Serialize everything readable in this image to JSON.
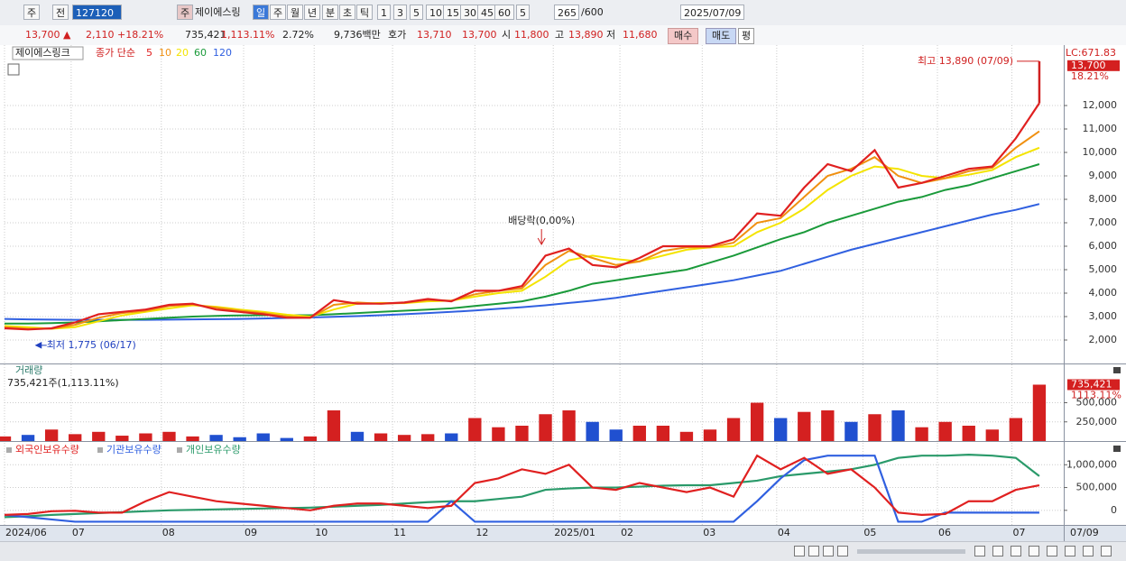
{
  "toolbar": [
    "주",
    "전",
    "127120",
    "주",
    "제이에스링",
    "일",
    "주",
    "월",
    "년",
    "분",
    "초",
    "틱",
    "1",
    "3",
    "5",
    "10",
    "15",
    "30",
    "45",
    "60",
    "5",
    "265",
    "/600",
    "2025/07/09"
  ],
  "info": [
    "13,700 ▲",
    "2,110",
    "+18.21%",
    "735,421",
    "1,113.11%",
    "2.72%",
    "9,736백만",
    "호가",
    "13,710",
    "13,700",
    "시",
    "11,800",
    "고",
    "13,890",
    "저",
    "11,680",
    "매수",
    "매도",
    "평"
  ],
  "chart_data": [
    {
      "type": "line",
      "title": "제이에스링크",
      "legend_prefix": "종가 단순",
      "x": [
        0,
        6,
        12,
        18,
        24,
        30,
        36,
        42,
        48,
        54,
        60,
        66,
        72,
        78,
        84,
        90,
        96,
        102,
        108,
        114,
        120,
        126,
        132,
        138,
        144,
        150,
        156,
        162,
        168,
        174,
        180,
        186,
        192,
        198,
        204,
        210,
        216,
        222,
        228,
        234,
        240,
        246,
        252,
        258,
        264
      ],
      "xlim": [
        0,
        270
      ],
      "xticks": [
        {
          "value": 0,
          "label": "2024/06"
        },
        {
          "value": 17,
          "label": "07"
        },
        {
          "value": 40,
          "label": "08"
        },
        {
          "value": 61,
          "label": "09"
        },
        {
          "value": 79,
          "label": "10"
        },
        {
          "value": 99,
          "label": "11"
        },
        {
          "value": 120,
          "label": "12"
        },
        {
          "value": 140,
          "label": "2025/01"
        },
        {
          "value": 157,
          "label": "02"
        },
        {
          "value": 178,
          "label": "03"
        },
        {
          "value": 197,
          "label": "04"
        },
        {
          "value": 219,
          "label": "05"
        },
        {
          "value": 238,
          "label": "06"
        },
        {
          "value": 257,
          "label": "07"
        }
      ],
      "x_end_label": "07/09",
      "ylim": [
        1000,
        14500
      ],
      "yticks": [
        {
          "value": 2000,
          "label": "2,000"
        },
        {
          "value": 3000,
          "label": "3,000"
        },
        {
          "value": 4000,
          "label": "4,000"
        },
        {
          "value": 5000,
          "label": "5,000"
        },
        {
          "value": 6000,
          "label": "6,000"
        },
        {
          "value": 7000,
          "label": "7,000"
        },
        {
          "value": 8000,
          "label": "8,000"
        },
        {
          "value": 9000,
          "label": "9,000"
        },
        {
          "value": 10000,
          "label": "10,000"
        },
        {
          "value": 11000,
          "label": "11,000"
        },
        {
          "value": 12000,
          "label": "12,000"
        }
      ],
      "grid": true,
      "series": [
        {
          "name": "5",
          "color": "#e02020",
          "values": [
            2500,
            2450,
            2500,
            2750,
            3100,
            3200,
            3300,
            3500,
            3550,
            3300,
            3200,
            3100,
            2950,
            2950,
            3700,
            3550,
            3550,
            3600,
            3750,
            3650,
            4100,
            4100,
            4300,
            5600,
            5900,
            5200,
            5100,
            5500,
            6000,
            6000,
            6000,
            6300,
            7400,
            7300,
            8500,
            9500,
            9200,
            10100,
            8500,
            8700,
            9000,
            9300,
            9400,
            10600,
            12100
          ]
        },
        {
          "name": "10",
          "color": "#f09010",
          "values": [
            2550,
            2480,
            2480,
            2650,
            2950,
            3150,
            3250,
            3450,
            3520,
            3380,
            3250,
            3150,
            3000,
            2950,
            3500,
            3600,
            3550,
            3580,
            3700,
            3680,
            3950,
            4100,
            4200,
            5200,
            5800,
            5500,
            5200,
            5350,
            5800,
            5950,
            5950,
            6150,
            7000,
            7200,
            8100,
            9000,
            9300,
            9800,
            9000,
            8700,
            8900,
            9200,
            9350,
            10200,
            10900
          ]
        },
        {
          "name": "20",
          "color": "#f4e400",
          "values": [
            2600,
            2550,
            2480,
            2550,
            2800,
            3050,
            3200,
            3350,
            3480,
            3420,
            3300,
            3200,
            3080,
            3000,
            3300,
            3550,
            3580,
            3570,
            3650,
            3680,
            3850,
            4000,
            4100,
            4700,
            5400,
            5600,
            5450,
            5350,
            5600,
            5850,
            5950,
            6000,
            6600,
            7000,
            7600,
            8400,
            9000,
            9400,
            9300,
            9000,
            8900,
            9050,
            9250,
            9800,
            10200
          ]
        },
        {
          "name": "60",
          "color": "#1a9a3a",
          "values": [
            2700,
            2700,
            2720,
            2750,
            2800,
            2850,
            2900,
            2950,
            3000,
            3030,
            3050,
            3060,
            3060,
            3060,
            3100,
            3150,
            3200,
            3250,
            3300,
            3350,
            3450,
            3550,
            3650,
            3850,
            4100,
            4400,
            4550,
            4700,
            4850,
            5000,
            5300,
            5600,
            5950,
            6300,
            6600,
            7000,
            7300,
            7600,
            7900,
            8100,
            8400,
            8600,
            8900,
            9200,
            9500
          ]
        },
        {
          "name": "120",
          "color": "#3060e0",
          "values": [
            2900,
            2880,
            2870,
            2860,
            2860,
            2860,
            2860,
            2870,
            2880,
            2890,
            2900,
            2920,
            2940,
            2960,
            2990,
            3020,
            3060,
            3100,
            3150,
            3200,
            3260,
            3330,
            3400,
            3480,
            3580,
            3680,
            3800,
            3950,
            4100,
            4250,
            4400,
            4550,
            4750,
            4950,
            5250,
            5550,
            5850,
            6100,
            6350,
            6600,
            6850,
            7100,
            7350,
            7550,
            7800
          ]
        }
      ],
      "high": {
        "label": "최고 13,890 (07/09)",
        "value": 13890,
        "x": 264
      },
      "low": {
        "label": "최저 1,775 (06/17)",
        "value": 1775,
        "x": 8
      },
      "event": {
        "label": "배당락(0,00%)",
        "x": 137
      },
      "last": {
        "value": 13700,
        "label": "13,700"
      },
      "change_label": "18.21%",
      "lc_label": "LC:671.83"
    },
    {
      "type": "bar",
      "title": "거래량",
      "subtitle": "735,421주(1,113.11%)",
      "color": "#d42020",
      "down_color": "#2050d0",
      "values": [
        60000,
        80000,
        150000,
        90000,
        120000,
        70000,
        100000,
        120000,
        60000,
        80000,
        50000,
        100000,
        40000,
        60000,
        400000,
        120000,
        100000,
        80000,
        90000,
        100000,
        300000,
        180000,
        200000,
        350000,
        400000,
        250000,
        150000,
        200000,
        200000,
        120000,
        150000,
        300000,
        500000,
        300000,
        380000,
        400000,
        250000,
        350000,
        400000,
        180000,
        250000,
        200000,
        150000,
        300000,
        735421
      ],
      "ylim": [
        0,
        1000000
      ],
      "yticks": [
        {
          "value": 250000,
          "label": "250,000"
        },
        {
          "value": 500000,
          "label": "500,000"
        }
      ],
      "last": {
        "value": 735421,
        "label": "735,421"
      },
      "ratio_label": "1113.11%"
    },
    {
      "type": "line",
      "ylim": [
        -320000,
        1500000
      ],
      "yticks": [
        0,
        {
          "value": 500000,
          "label": "500,000"
        },
        {
          "value": 1000000,
          "label": "1,000,000"
        }
      ],
      "series": [
        {
          "name": "외국인보유수량",
          "color": "#e02020",
          "values": [
            -100000,
            -80000,
            -20000,
            -10000,
            -50000,
            -50000,
            200000,
            400000,
            300000,
            200000,
            150000,
            100000,
            50000,
            0,
            100000,
            150000,
            150000,
            100000,
            50000,
            100000,
            600000,
            700000,
            900000,
            800000,
            1000000,
            500000,
            450000,
            600000,
            500000,
            400000,
            500000,
            300000,
            1200000,
            900000,
            1150000,
            800000,
            900000,
            500000,
            -50000,
            -100000,
            -80000,
            200000,
            200000,
            450000,
            550000
          ]
        },
        {
          "name": "기관보유수량",
          "color": "#3060e0",
          "values": [
            -100000,
            -150000,
            -200000,
            -250000,
            -250000,
            -250000,
            -250000,
            -250000,
            -250000,
            -250000,
            -250000,
            -250000,
            -250000,
            -250000,
            -250000,
            -250000,
            -250000,
            -250000,
            -250000,
            200000,
            -250000,
            -250000,
            -250000,
            -250000,
            -250000,
            -250000,
            -250000,
            -250000,
            -250000,
            -250000,
            -250000,
            -250000,
            200000,
            700000,
            1100000,
            1200000,
            1200000,
            1200000,
            -250000,
            -250000,
            -50000,
            -50000,
            -50000,
            -50000,
            -50000
          ]
        },
        {
          "name": "개인보유수량",
          "color": "#2a9a6a",
          "values": [
            -150000,
            -130000,
            -100000,
            -80000,
            -60000,
            -40000,
            -20000,
            0,
            10000,
            20000,
            30000,
            40000,
            50000,
            60000,
            80000,
            100000,
            120000,
            150000,
            180000,
            200000,
            200000,
            250000,
            300000,
            450000,
            480000,
            500000,
            500000,
            520000,
            540000,
            550000,
            550000,
            600000,
            650000,
            750000,
            800000,
            850000,
            900000,
            1000000,
            1150000,
            1200000,
            1200000,
            1220000,
            1200000,
            1150000,
            750000
          ]
        }
      ]
    }
  ]
}
